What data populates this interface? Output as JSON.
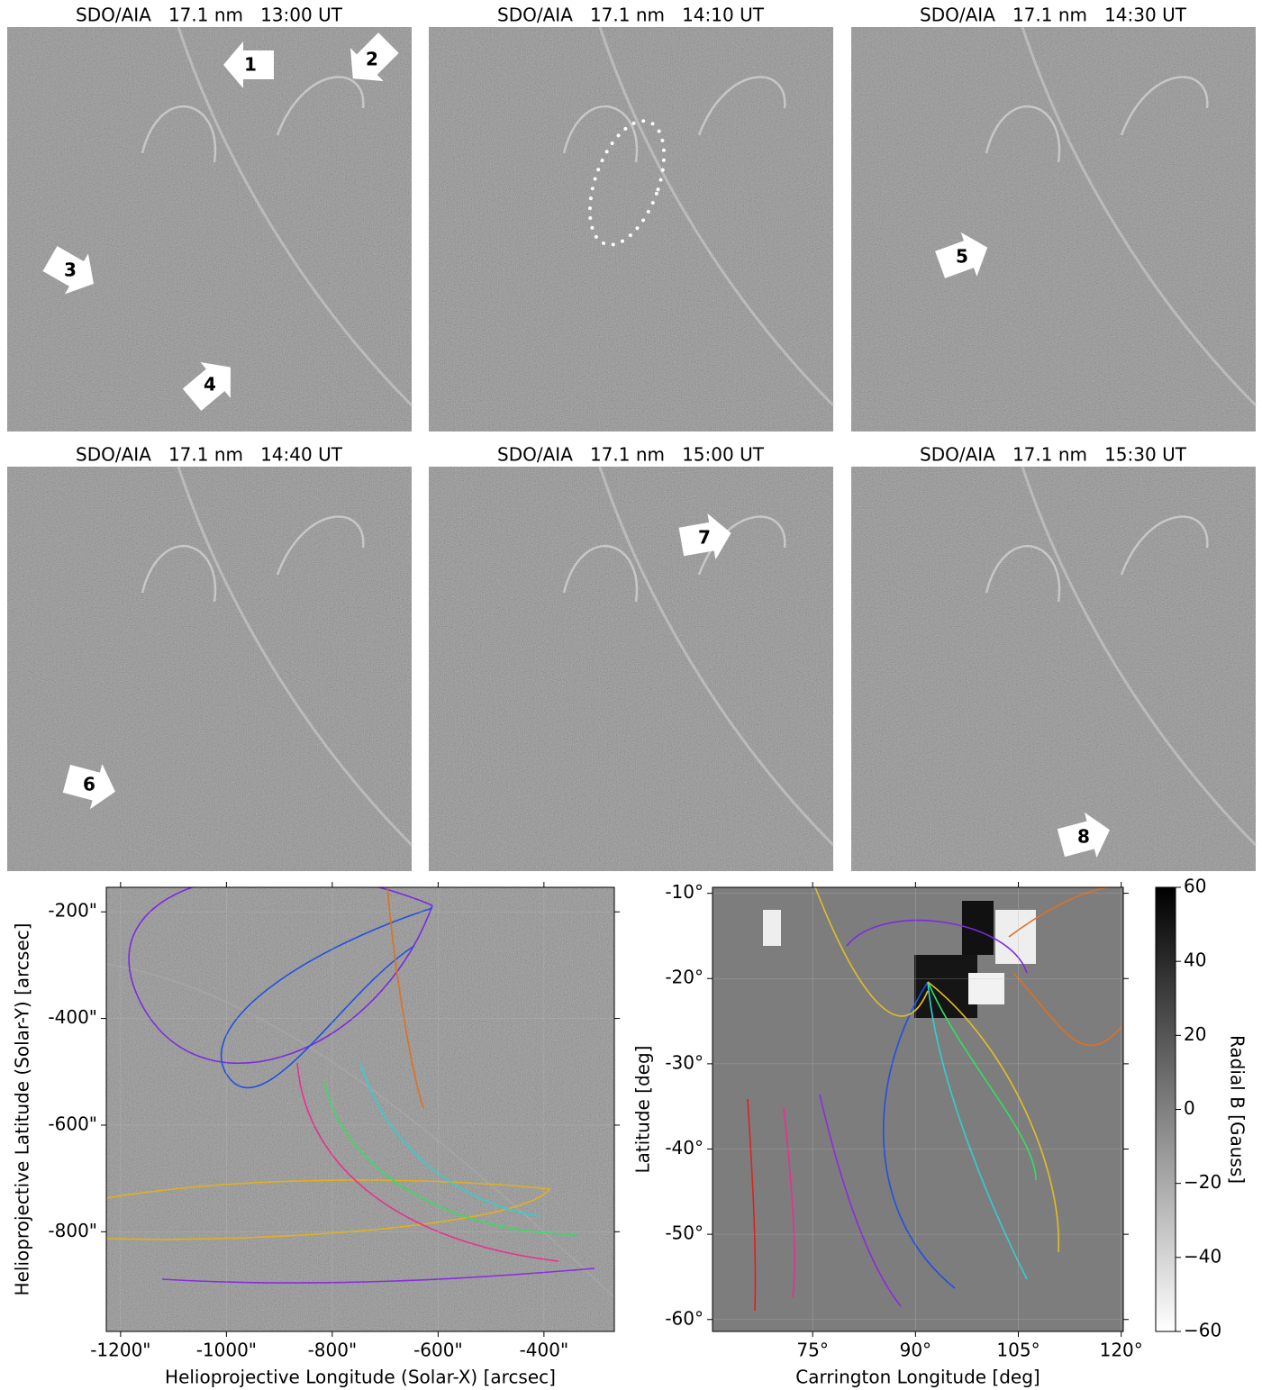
{
  "chart_data": [
    {
      "type": "image",
      "title": "SDO/AIA   17.1 nm   13:00 UT",
      "annotations": [
        "1",
        "2",
        "3",
        "4"
      ]
    },
    {
      "type": "image",
      "title": "SDO/AIA   17.1 nm   14:10 UT"
    },
    {
      "type": "image",
      "title": "SDO/AIA   17.1 nm   14:30 UT",
      "annotations": [
        "5"
      ]
    },
    {
      "type": "image",
      "title": "SDO/AIA   17.1 nm   14:40 UT",
      "annotations": [
        "6"
      ]
    },
    {
      "type": "image",
      "title": "SDO/AIA   17.1 nm   15:00 UT",
      "annotations": [
        "7"
      ]
    },
    {
      "type": "image",
      "title": "SDO/AIA   17.1 nm   15:30 UT",
      "annotations": [
        "8"
      ]
    },
    {
      "type": "image",
      "xlabel": "Helioprojective Longitude (Solar-X) [arcsec]",
      "ylabel": "Helioprojective Latitude (Solar-Y) [arcsec]",
      "xlim": [
        -1227,
        -267
      ],
      "ylim": [
        -987,
        -154
      ],
      "xticks": [
        {
          "value": -1200,
          "label": "-1200\""
        },
        {
          "value": -1000,
          "label": "-1000\""
        },
        {
          "value": -800,
          "label": "-800\""
        },
        {
          "value": -600,
          "label": "-600\""
        },
        {
          "value": -400,
          "label": "-400\""
        }
      ],
      "yticks": [
        {
          "value": -200,
          "label": "-200\""
        },
        {
          "value": -400,
          "label": "-400\""
        },
        {
          "value": -600,
          "label": "-600\""
        },
        {
          "value": -800,
          "label": "-800\""
        }
      ]
    },
    {
      "type": "image",
      "xlabel": "Carrington Longitude [deg]",
      "ylabel": "Latitude [deg]",
      "xlim": [
        60.4,
        120.3
      ],
      "ylim": [
        -61.4,
        -9.3
      ],
      "xticks": [
        {
          "value": 75,
          "label": "75°"
        },
        {
          "value": 90,
          "label": "90°"
        },
        {
          "value": 105,
          "label": "105°"
        },
        {
          "value": 120,
          "label": "120°"
        }
      ],
      "yticks": [
        {
          "value": -10,
          "label": "-10°"
        },
        {
          "value": -20,
          "label": "-20°"
        },
        {
          "value": -30,
          "label": "-30°"
        },
        {
          "value": -40,
          "label": "-40°"
        },
        {
          "value": -50,
          "label": "-50°"
        },
        {
          "value": -60,
          "label": "-60°"
        }
      ],
      "colorbar": {
        "label": "Radial B [Gauss]",
        "lim": [
          -60,
          60
        ],
        "ticks": [
          {
            "value": -60,
            "label": "−60"
          },
          {
            "value": -40,
            "label": "−40"
          },
          {
            "value": -20,
            "label": "−20"
          },
          0,
          20,
          40,
          60
        ]
      }
    }
  ]
}
